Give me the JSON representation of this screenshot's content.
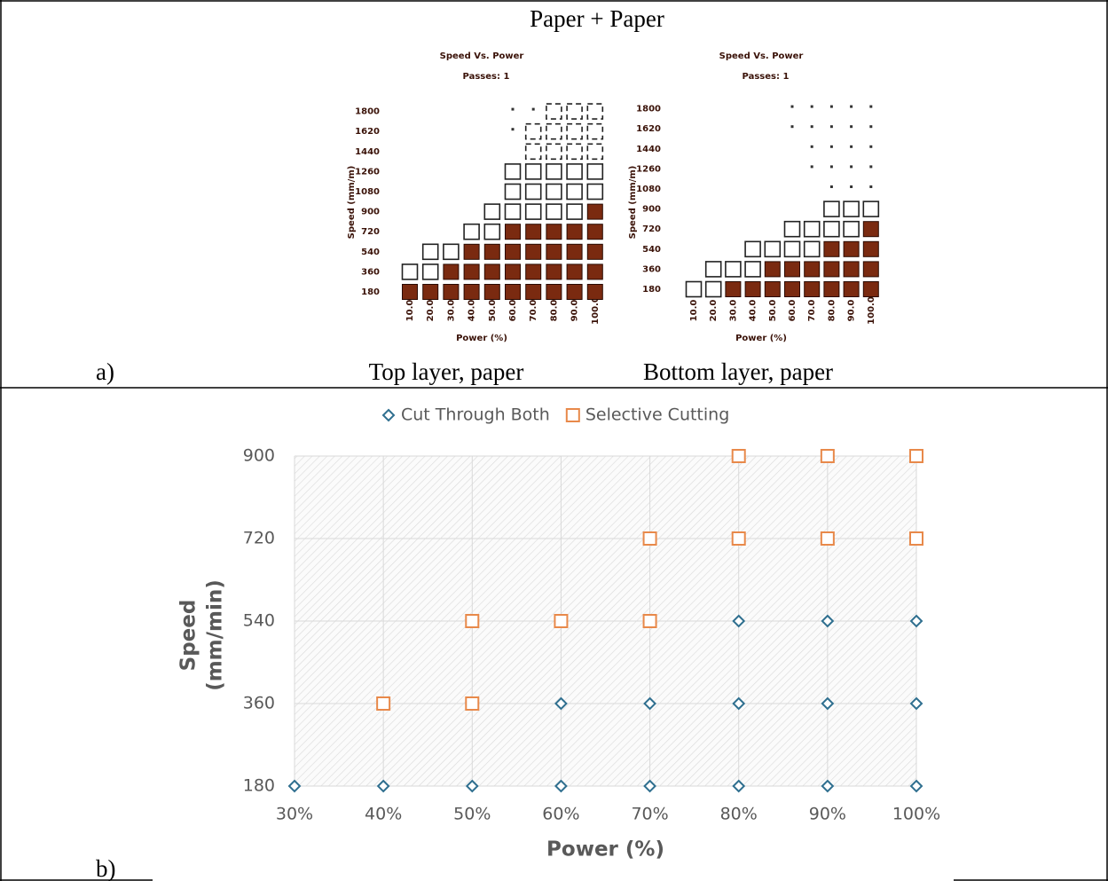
{
  "figure": {
    "top_title": "Paper + Paper",
    "label_a": "a)",
    "label_b": "b)",
    "cards": [
      {
        "caption": "Top layer, paper",
        "title": "Speed Vs. Power",
        "passes": "Passes: 1",
        "ylabel": "Speed (mm/m)",
        "xlabel": "Power (%)",
        "yticks": [
          180,
          360,
          540,
          720,
          900,
          1080,
          1260,
          1440,
          1620,
          1800
        ],
        "xticks": [
          "10.0",
          "20.0",
          "30.0",
          "40.0",
          "50.0",
          "60.0",
          "70.0",
          "80.0",
          "90.0",
          "100.0"
        ]
      },
      {
        "caption": "Bottom layer, paper",
        "title": "Speed Vs. Power",
        "passes": "Passes: 1",
        "ylabel": "Speed (mm/m)",
        "xlabel": "Power (%)",
        "yticks": [
          180,
          360,
          540,
          720,
          900,
          1080,
          1260,
          1440,
          1620,
          1800
        ],
        "xticks": [
          "10.0",
          "20.0",
          "30.0",
          "40.0",
          "50.0",
          "60.0",
          "70.0",
          "80.0",
          "90.0",
          "100.0"
        ]
      }
    ]
  },
  "chart_data": {
    "type": "scatter",
    "x_label": "Power (%)",
    "y_label": [
      "Speed",
      "(mm/min)"
    ],
    "xlim": [
      30,
      100
    ],
    "ylim": [
      180,
      900
    ],
    "xticks": [
      {
        "value": 30,
        "label": "30%"
      },
      {
        "value": 40,
        "label": "40%"
      },
      {
        "value": 50,
        "label": "50%"
      },
      {
        "value": 60,
        "label": "60%"
      },
      {
        "value": 70,
        "label": "70%"
      },
      {
        "value": 80,
        "label": "80%"
      },
      {
        "value": 90,
        "label": "90%"
      },
      {
        "value": 100,
        "label": "100%"
      }
    ],
    "yticks": [
      180,
      360,
      540,
      720,
      900
    ],
    "grid": true,
    "legend": "top",
    "series": [
      {
        "name": "Cut Through Both",
        "color": "#2f6f8f",
        "marker": "diamond",
        "x": [
          30,
          40,
          50,
          60,
          70,
          80,
          90,
          100,
          60,
          70,
          80,
          90,
          100,
          80,
          90,
          100
        ],
        "values": [
          180,
          180,
          180,
          180,
          180,
          180,
          180,
          180,
          360,
          360,
          360,
          360,
          360,
          540,
          540,
          540
        ]
      },
      {
        "name": "Selective Cutting",
        "color": "#e8894a",
        "marker": "square",
        "x": [
          40,
          50,
          50,
          60,
          70,
          70,
          80,
          90,
          100,
          80,
          90,
          100
        ],
        "values": [
          360,
          360,
          540,
          540,
          540,
          720,
          720,
          720,
          720,
          900,
          900,
          900
        ]
      }
    ]
  }
}
